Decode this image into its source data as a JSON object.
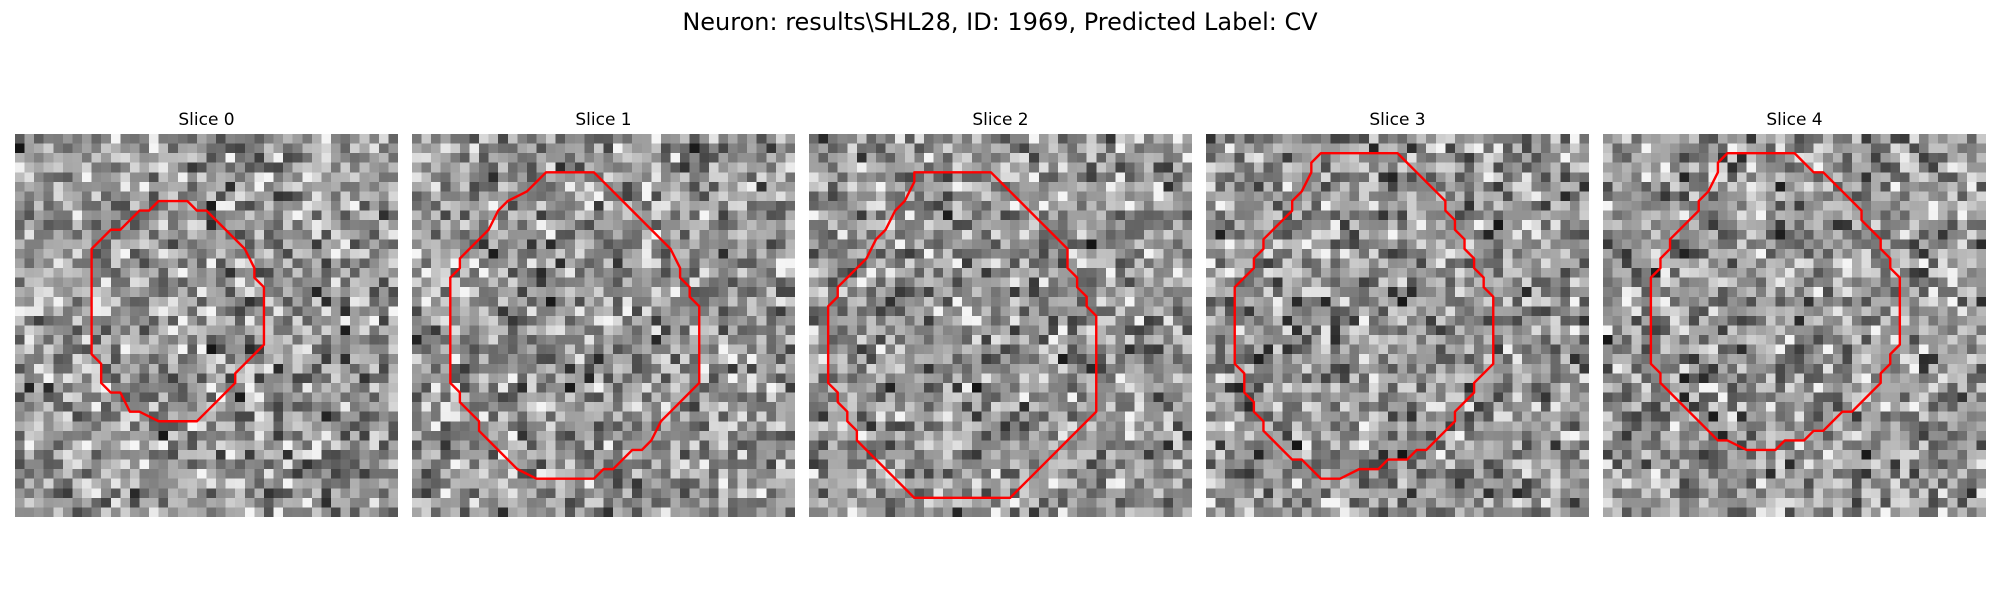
{
  "figure": {
    "title": "Neuron: results\\SHL28, ID: 1969, Predicted Label: CV",
    "contour_color": "#ff0000",
    "colormap": "gray"
  },
  "panels": [
    {
      "title": "Slice 0",
      "seed": 11,
      "contour": [
        [
          16,
          7
        ],
        [
          18,
          7
        ],
        [
          19,
          8
        ],
        [
          20,
          8
        ],
        [
          22,
          10
        ],
        [
          23,
          11
        ],
        [
          24,
          12
        ],
        [
          25,
          14
        ],
        [
          25,
          15
        ],
        [
          26,
          16
        ],
        [
          26,
          22
        ],
        [
          25,
          23
        ],
        [
          24,
          24
        ],
        [
          23,
          25
        ],
        [
          23,
          26
        ],
        [
          21,
          28
        ],
        [
          20,
          29
        ],
        [
          19,
          30
        ],
        [
          15,
          30
        ],
        [
          13,
          29
        ],
        [
          12,
          29
        ],
        [
          11,
          27
        ],
        [
          10,
          27
        ],
        [
          9,
          26
        ],
        [
          9,
          24
        ],
        [
          8,
          23
        ],
        [
          8,
          12
        ],
        [
          9,
          11
        ],
        [
          10,
          10
        ],
        [
          11,
          10
        ],
        [
          13,
          8
        ],
        [
          14,
          8
        ],
        [
          15,
          7
        ]
      ]
    },
    {
      "title": "Slice 1",
      "seed": 23,
      "contour": [
        [
          14,
          4
        ],
        [
          19,
          4
        ],
        [
          21,
          6
        ],
        [
          22,
          7
        ],
        [
          23,
          8
        ],
        [
          24,
          9
        ],
        [
          25,
          10
        ],
        [
          26,
          11
        ],
        [
          27,
          12
        ],
        [
          28,
          14
        ],
        [
          28,
          15
        ],
        [
          29,
          16
        ],
        [
          29,
          17
        ],
        [
          30,
          18
        ],
        [
          30,
          26
        ],
        [
          29,
          27
        ],
        [
          28,
          28
        ],
        [
          27,
          29
        ],
        [
          26,
          30
        ],
        [
          25,
          32
        ],
        [
          24,
          33
        ],
        [
          23,
          33
        ],
        [
          22,
          34
        ],
        [
          21,
          35
        ],
        [
          20,
          35
        ],
        [
          19,
          36
        ],
        [
          13,
          36
        ],
        [
          11,
          35
        ],
        [
          10,
          34
        ],
        [
          9,
          33
        ],
        [
          8,
          32
        ],
        [
          7,
          31
        ],
        [
          7,
          30
        ],
        [
          6,
          29
        ],
        [
          5,
          28
        ],
        [
          5,
          27
        ],
        [
          4,
          26
        ],
        [
          4,
          15
        ],
        [
          5,
          14
        ],
        [
          5,
          13
        ],
        [
          6,
          12
        ],
        [
          7,
          11
        ],
        [
          8,
          10
        ],
        [
          9,
          8
        ],
        [
          10,
          7
        ],
        [
          12,
          6
        ],
        [
          13,
          5
        ]
      ]
    },
    {
      "title": "Slice 2",
      "seed": 37,
      "contour": [
        [
          11,
          4
        ],
        [
          19,
          4
        ],
        [
          20,
          5
        ],
        [
          21,
          6
        ],
        [
          22,
          7
        ],
        [
          23,
          8
        ],
        [
          24,
          9
        ],
        [
          25,
          10
        ],
        [
          26,
          11
        ],
        [
          27,
          12
        ],
        [
          27,
          14
        ],
        [
          28,
          15
        ],
        [
          28,
          16
        ],
        [
          29,
          17
        ],
        [
          29,
          18
        ],
        [
          30,
          19
        ],
        [
          30,
          29
        ],
        [
          29,
          30
        ],
        [
          28,
          31
        ],
        [
          27,
          32
        ],
        [
          26,
          33
        ],
        [
          25,
          34
        ],
        [
          24,
          35
        ],
        [
          23,
          36
        ],
        [
          22,
          37
        ],
        [
          21,
          38
        ],
        [
          11,
          38
        ],
        [
          10,
          37
        ],
        [
          9,
          36
        ],
        [
          8,
          35
        ],
        [
          7,
          34
        ],
        [
          6,
          33
        ],
        [
          5,
          32
        ],
        [
          5,
          31
        ],
        [
          4,
          30
        ],
        [
          4,
          29
        ],
        [
          3,
          28
        ],
        [
          3,
          27
        ],
        [
          2,
          26
        ],
        [
          2,
          18
        ],
        [
          3,
          17
        ],
        [
          3,
          16
        ],
        [
          4,
          15
        ],
        [
          5,
          14
        ],
        [
          6,
          13
        ],
        [
          7,
          11
        ],
        [
          8,
          10
        ],
        [
          9,
          8
        ],
        [
          10,
          7
        ],
        [
          11,
          5
        ]
      ]
    },
    {
      "title": "Slice 3",
      "seed": 53,
      "contour": [
        [
          12,
          2
        ],
        [
          20,
          2
        ],
        [
          21,
          3
        ],
        [
          22,
          4
        ],
        [
          23,
          5
        ],
        [
          24,
          6
        ],
        [
          25,
          7
        ],
        [
          25,
          8
        ],
        [
          26,
          9
        ],
        [
          26,
          10
        ],
        [
          27,
          11
        ],
        [
          27,
          12
        ],
        [
          28,
          13
        ],
        [
          28,
          14
        ],
        [
          29,
          15
        ],
        [
          29,
          16
        ],
        [
          30,
          17
        ],
        [
          30,
          24
        ],
        [
          29,
          25
        ],
        [
          28,
          26
        ],
        [
          28,
          27
        ],
        [
          27,
          28
        ],
        [
          26,
          29
        ],
        [
          26,
          30
        ],
        [
          25,
          31
        ],
        [
          24,
          32
        ],
        [
          23,
          33
        ],
        [
          22,
          33
        ],
        [
          21,
          34
        ],
        [
          19,
          34
        ],
        [
          18,
          35
        ],
        [
          16,
          35
        ],
        [
          14,
          36
        ],
        [
          12,
          36
        ],
        [
          11,
          35
        ],
        [
          10,
          34
        ],
        [
          9,
          34
        ],
        [
          8,
          33
        ],
        [
          7,
          32
        ],
        [
          6,
          31
        ],
        [
          6,
          30
        ],
        [
          5,
          29
        ],
        [
          5,
          28
        ],
        [
          4,
          27
        ],
        [
          4,
          25
        ],
        [
          3,
          24
        ],
        [
          3,
          16
        ],
        [
          4,
          15
        ],
        [
          5,
          14
        ],
        [
          5,
          13
        ],
        [
          6,
          12
        ],
        [
          6,
          11
        ],
        [
          7,
          10
        ],
        [
          8,
          9
        ],
        [
          9,
          8
        ],
        [
          9,
          7
        ],
        [
          10,
          6
        ],
        [
          11,
          4
        ],
        [
          11,
          3
        ]
      ]
    },
    {
      "title": "Slice 4",
      "seed": 71,
      "contour": [
        [
          13,
          2
        ],
        [
          20,
          2
        ],
        [
          21,
          3
        ],
        [
          22,
          4
        ],
        [
          23,
          4
        ],
        [
          24,
          5
        ],
        [
          25,
          6
        ],
        [
          26,
          7
        ],
        [
          27,
          8
        ],
        [
          27,
          9
        ],
        [
          28,
          10
        ],
        [
          29,
          11
        ],
        [
          29,
          12
        ],
        [
          30,
          13
        ],
        [
          30,
          14
        ],
        [
          31,
          15
        ],
        [
          31,
          22
        ],
        [
          30,
          23
        ],
        [
          30,
          24
        ],
        [
          29,
          25
        ],
        [
          29,
          26
        ],
        [
          28,
          27
        ],
        [
          27,
          28
        ],
        [
          26,
          29
        ],
        [
          25,
          29
        ],
        [
          24,
          30
        ],
        [
          23,
          31
        ],
        [
          22,
          31
        ],
        [
          21,
          32
        ],
        [
          19,
          32
        ],
        [
          18,
          33
        ],
        [
          15,
          33
        ],
        [
          13,
          32
        ],
        [
          12,
          32
        ],
        [
          11,
          31
        ],
        [
          10,
          30
        ],
        [
          9,
          29
        ],
        [
          8,
          28
        ],
        [
          7,
          27
        ],
        [
          6,
          26
        ],
        [
          6,
          25
        ],
        [
          5,
          24
        ],
        [
          5,
          23
        ],
        [
          5,
          15
        ],
        [
          6,
          14
        ],
        [
          6,
          13
        ],
        [
          7,
          12
        ],
        [
          7,
          11
        ],
        [
          8,
          10
        ],
        [
          9,
          9
        ],
        [
          10,
          8
        ],
        [
          10,
          7
        ],
        [
          11,
          6
        ],
        [
          12,
          4
        ],
        [
          12,
          3
        ]
      ]
    }
  ]
}
